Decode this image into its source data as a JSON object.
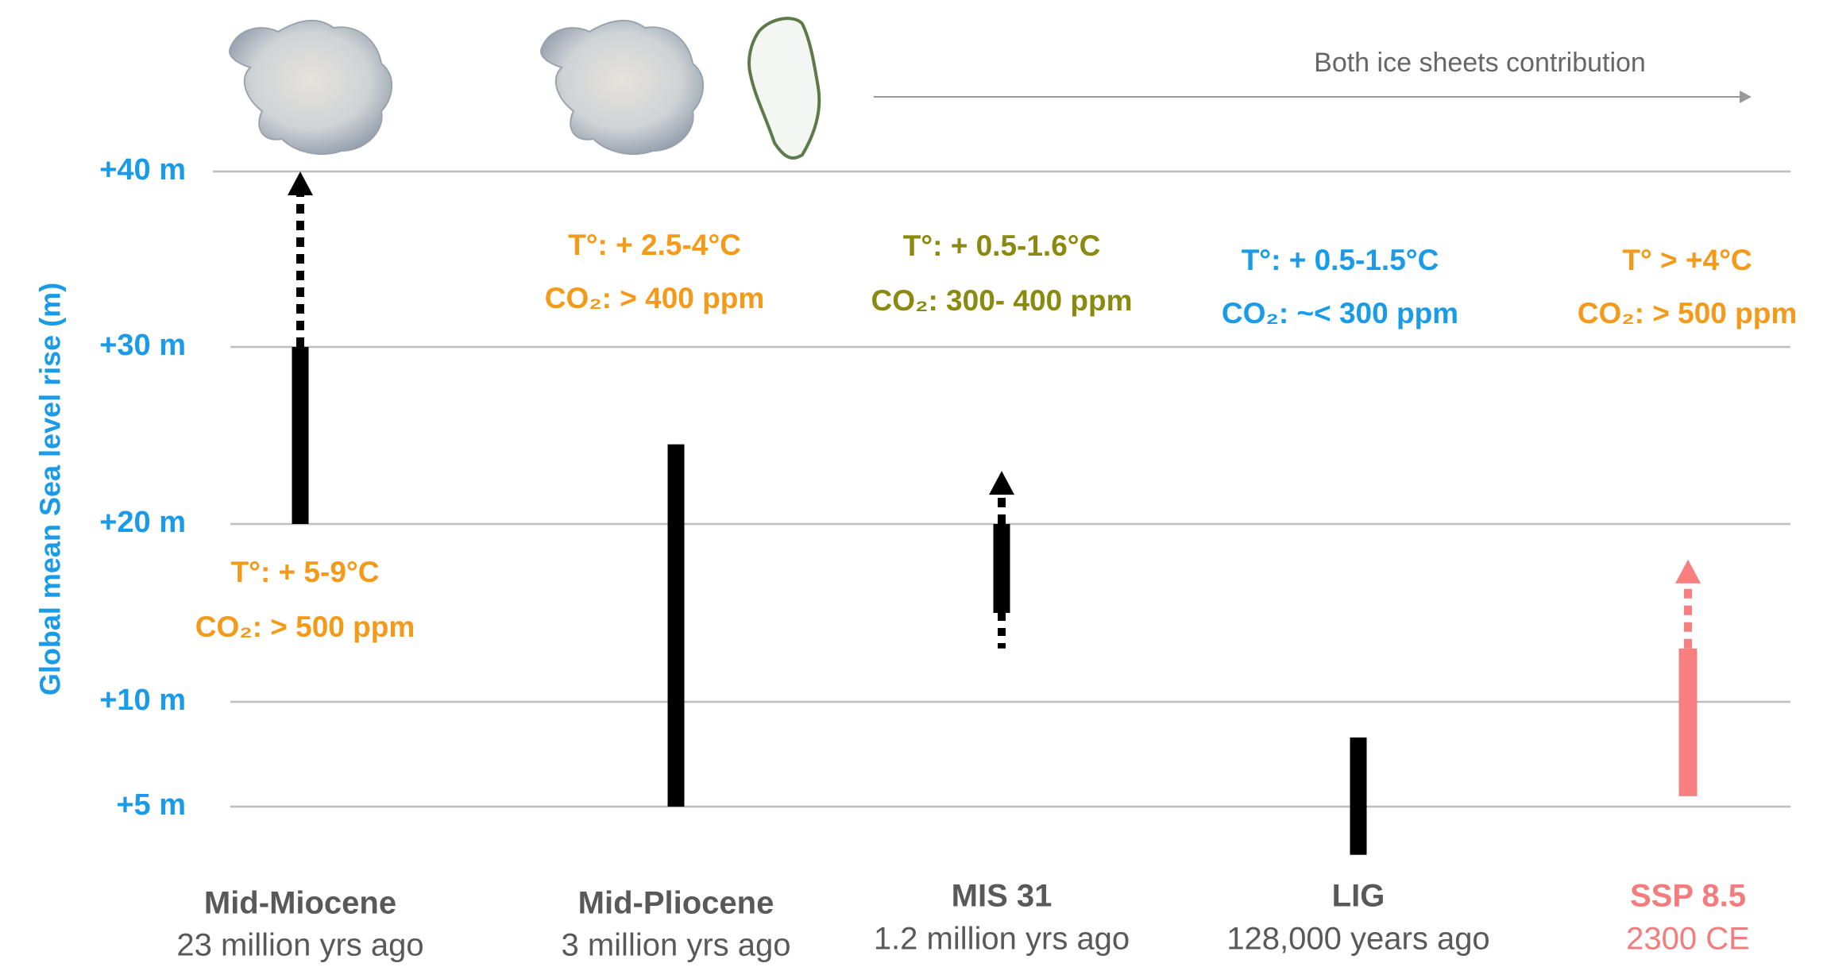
{
  "chart_data": {
    "type": "range",
    "y_label": "Global mean Sea level rise (m)",
    "top_note": "Both ice sheets contribution",
    "yticks": [
      {
        "value": 40,
        "label": "+40 m"
      },
      {
        "value": 30,
        "label": "+30 m"
      },
      {
        "value": 20,
        "label": "+20 m"
      },
      {
        "value": 10,
        "label": "+10 m"
      },
      {
        "value": 5,
        "label": "+5 m"
      }
    ],
    "grid": true,
    "categories": [
      "Mid-Miocene",
      "Mid-Pliocene",
      "MIS 31",
      "LIG",
      "SSP 8.5"
    ],
    "category_subtitles": [
      "23 million yrs ago",
      "3 million yrs ago",
      "1.2 million yrs ago",
      "128,000 years ago",
      "2300 CE"
    ],
    "category_colors": [
      "#595959",
      "#595959",
      "#595959",
      "#595959",
      "#f47c7c"
    ],
    "bar_colors": [
      "#000000",
      "#000000",
      "#000000",
      "#000000",
      "#f77f7f"
    ],
    "bar_low": [
      20,
      5,
      15,
      2.7,
      5.5
    ],
    "bar_high": [
      30,
      24.5,
      20,
      8.3,
      13
    ],
    "dotted_low": [
      null,
      null,
      13,
      null,
      null
    ],
    "dotted_high": [
      40,
      null,
      23,
      null,
      18
    ],
    "annotations": [
      {
        "temperature": "T°: + 5-9°C",
        "co2": "CO₂: > 500 ppm",
        "color": "#f39a1a"
      },
      {
        "temperature": "T°: + 2.5-4°C",
        "co2": "CO₂: > 400 ppm",
        "color": "#f39a1a"
      },
      {
        "temperature": "T°: + 0.5-1.6°C",
        "co2": "CO₂: 300- 400 ppm",
        "color": "#8a8a10"
      },
      {
        "temperature": "T°: + 0.5-1.5°C",
        "co2": "CO₂: ~< 300 ppm",
        "color": "#1a9be8"
      },
      {
        "temperature": "T° > +4°C",
        "co2": "CO₂: > 500 ppm",
        "color": "#f39a1a"
      }
    ],
    "axis_color": "#1a9be8"
  }
}
